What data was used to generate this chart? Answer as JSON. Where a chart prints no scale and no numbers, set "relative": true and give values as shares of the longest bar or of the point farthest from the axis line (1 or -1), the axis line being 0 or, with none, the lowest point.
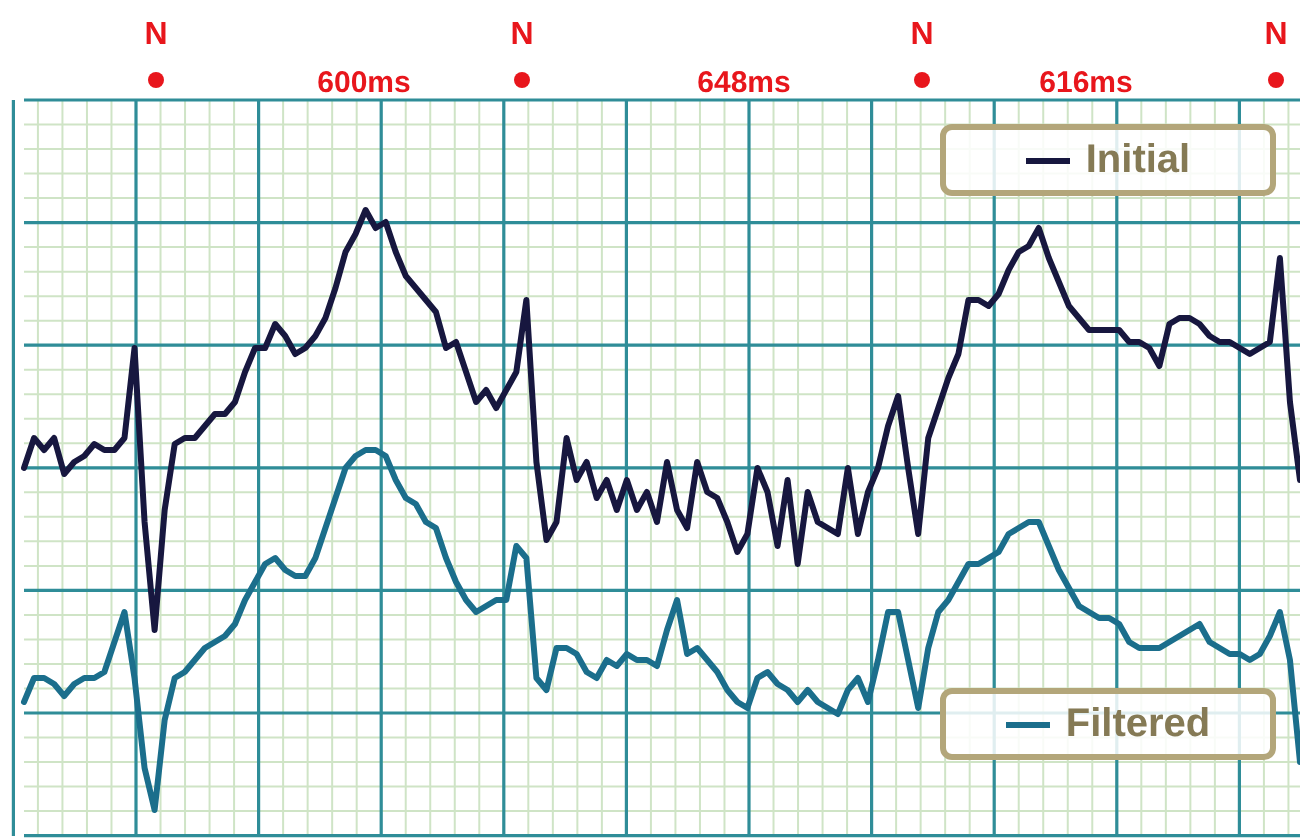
{
  "chart_data": {
    "type": "line",
    "relative": true,
    "grid": true,
    "legend": "right",
    "annotations": [
      "N",
      "600ms",
      "N",
      "648ms",
      "N",
      "616ms",
      "N"
    ],
    "categories": [
      null,
      null,
      null,
      null,
      null,
      null,
      null,
      null,
      null,
      null,
      null,
      null,
      null,
      null,
      null,
      null,
      null,
      null,
      null,
      null,
      null,
      null,
      null,
      null,
      null,
      null,
      null,
      null,
      null,
      null,
      null,
      null,
      null,
      null,
      null,
      null,
      null,
      null,
      null,
      null,
      null,
      null,
      null,
      null,
      null,
      null,
      null,
      null,
      null,
      null,
      null,
      null,
      null,
      null,
      null,
      null,
      null,
      null,
      null,
      null,
      null,
      null,
      null,
      null,
      null,
      null,
      null,
      null,
      null,
      null,
      null,
      null,
      null,
      null,
      null,
      null,
      null,
      null,
      null,
      null,
      null,
      null,
      null,
      null,
      null,
      null,
      null,
      null,
      null,
      null,
      null,
      null,
      null,
      null,
      null,
      null,
      null,
      null,
      null,
      null,
      null,
      null,
      null,
      null,
      null,
      null,
      null,
      null,
      null,
      null,
      null,
      null,
      null,
      null,
      null,
      null,
      null,
      null,
      null,
      null,
      null,
      null,
      null,
      null,
      null,
      null,
      null,
      null
    ],
    "series": [
      {
        "name": "Initial",
        "color": "#17173f",
        "values": [
          0.57,
          0.62,
          0.6,
          0.62,
          0.56,
          0.58,
          0.59,
          0.61,
          0.6,
          0.6,
          0.62,
          0.77,
          0.48,
          0.3,
          0.5,
          0.61,
          0.62,
          0.62,
          0.64,
          0.66,
          0.66,
          0.68,
          0.73,
          0.77,
          0.77,
          0.81,
          0.79,
          0.76,
          0.77,
          0.79,
          0.82,
          0.87,
          0.93,
          0.96,
          1.0,
          0.97,
          0.98,
          0.93,
          0.89,
          0.87,
          0.85,
          0.83,
          0.77,
          0.78,
          0.73,
          0.68,
          0.7,
          0.67,
          0.7,
          0.73,
          0.85,
          0.58,
          0.45,
          0.48,
          0.62,
          0.55,
          0.58,
          0.52,
          0.55,
          0.5,
          0.55,
          0.5,
          0.53,
          0.48,
          0.58,
          0.5,
          0.47,
          0.58,
          0.53,
          0.52,
          0.48,
          0.43,
          0.46,
          0.57,
          0.53,
          0.44,
          0.55,
          0.41,
          0.53,
          0.48,
          0.47,
          0.46,
          0.57,
          0.46,
          0.53,
          0.57,
          0.64,
          0.69,
          0.57,
          0.46,
          0.62,
          0.67,
          0.72,
          0.76,
          0.85,
          0.85,
          0.84,
          0.86,
          0.9,
          0.93,
          0.94,
          0.97,
          0.92,
          0.88,
          0.84,
          0.82,
          0.8,
          0.8,
          0.8,
          0.8,
          0.78,
          0.78,
          0.77,
          0.74,
          0.81,
          0.82,
          0.82,
          0.81,
          0.79,
          0.78,
          0.78,
          0.77,
          0.76,
          0.77,
          0.78,
          0.92,
          0.68,
          0.55
        ]
      },
      {
        "name": "Filtered",
        "color": "#1b6e8c",
        "values": [
          0.18,
          0.22,
          0.22,
          0.21,
          0.19,
          0.21,
          0.22,
          0.22,
          0.23,
          0.28,
          0.33,
          0.22,
          0.07,
          0.0,
          0.15,
          0.22,
          0.23,
          0.25,
          0.27,
          0.28,
          0.29,
          0.31,
          0.35,
          0.38,
          0.41,
          0.42,
          0.4,
          0.39,
          0.39,
          0.42,
          0.47,
          0.52,
          0.57,
          0.59,
          0.6,
          0.6,
          0.59,
          0.55,
          0.52,
          0.51,
          0.48,
          0.47,
          0.42,
          0.38,
          0.35,
          0.33,
          0.34,
          0.35,
          0.35,
          0.44,
          0.42,
          0.22,
          0.2,
          0.27,
          0.27,
          0.26,
          0.23,
          0.22,
          0.25,
          0.24,
          0.26,
          0.25,
          0.25,
          0.24,
          0.3,
          0.35,
          0.26,
          0.27,
          0.25,
          0.23,
          0.2,
          0.18,
          0.17,
          0.22,
          0.23,
          0.21,
          0.2,
          0.18,
          0.2,
          0.18,
          0.17,
          0.16,
          0.2,
          0.22,
          0.18,
          0.25,
          0.33,
          0.33,
          0.25,
          0.17,
          0.27,
          0.33,
          0.35,
          0.38,
          0.41,
          0.41,
          0.42,
          0.43,
          0.46,
          0.47,
          0.48,
          0.48,
          0.44,
          0.4,
          0.37,
          0.34,
          0.33,
          0.32,
          0.32,
          0.31,
          0.28,
          0.27,
          0.27,
          0.27,
          0.28,
          0.29,
          0.3,
          0.31,
          0.28,
          0.27,
          0.26,
          0.26,
          0.25,
          0.26,
          0.29,
          0.33,
          0.25,
          0.08
        ]
      }
    ]
  }
}
